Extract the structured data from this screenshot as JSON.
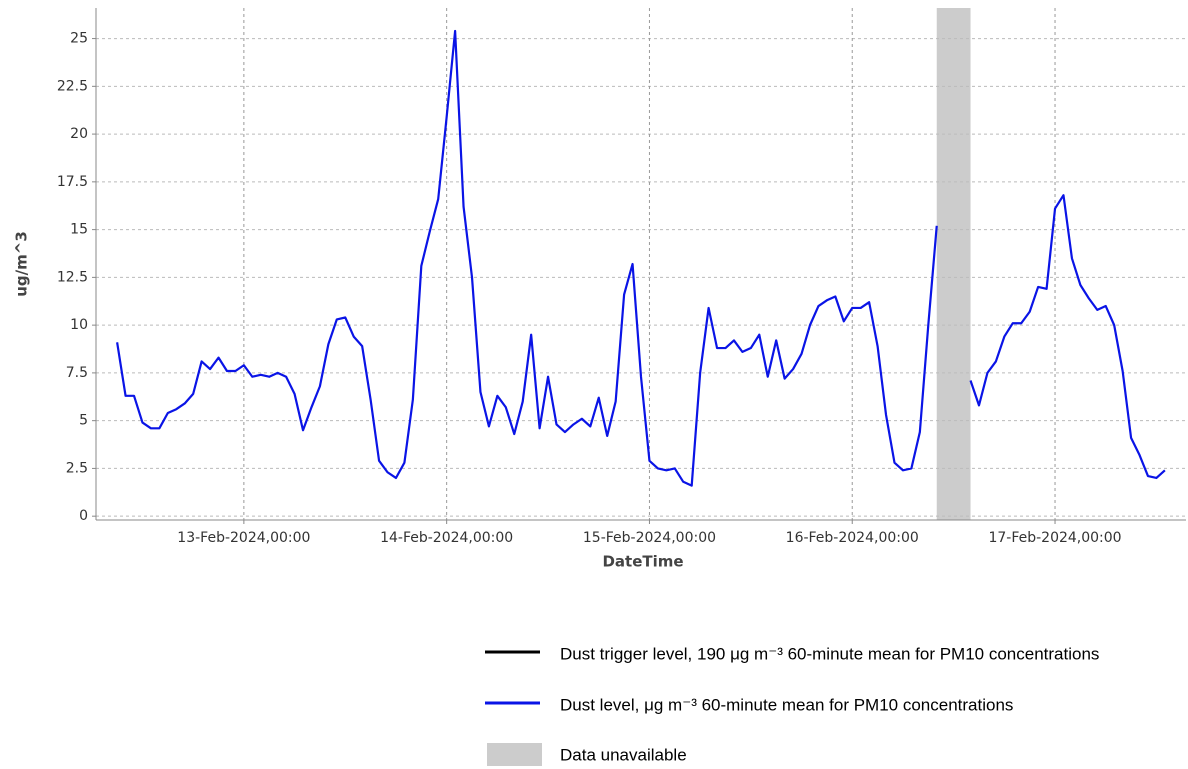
{
  "chart_data": {
    "type": "line",
    "xlabel": "DateTime",
    "ylabel": "ug/m^3",
    "x": [
      "2024-02-12T09:00",
      "2024-02-12T10:00",
      "2024-02-12T11:00",
      "2024-02-12T12:00",
      "2024-02-12T13:00",
      "2024-02-12T14:00",
      "2024-02-12T15:00",
      "2024-02-12T16:00",
      "2024-02-12T17:00",
      "2024-02-12T18:00",
      "2024-02-12T19:00",
      "2024-02-12T20:00",
      "2024-02-12T21:00",
      "2024-02-12T22:00",
      "2024-02-12T23:00",
      "2024-02-13T00:00",
      "2024-02-13T01:00",
      "2024-02-13T02:00",
      "2024-02-13T03:00",
      "2024-02-13T04:00",
      "2024-02-13T05:00",
      "2024-02-13T06:00",
      "2024-02-13T07:00",
      "2024-02-13T08:00",
      "2024-02-13T09:00",
      "2024-02-13T10:00",
      "2024-02-13T11:00",
      "2024-02-13T12:00",
      "2024-02-13T13:00",
      "2024-02-13T14:00",
      "2024-02-13T15:00",
      "2024-02-13T16:00",
      "2024-02-13T17:00",
      "2024-02-13T18:00",
      "2024-02-13T19:00",
      "2024-02-13T20:00",
      "2024-02-13T21:00",
      "2024-02-13T22:00",
      "2024-02-13T23:00",
      "2024-02-14T00:00",
      "2024-02-14T01:00",
      "2024-02-14T02:00",
      "2024-02-14T03:00",
      "2024-02-14T04:00",
      "2024-02-14T05:00",
      "2024-02-14T06:00",
      "2024-02-14T07:00",
      "2024-02-14T08:00",
      "2024-02-14T09:00",
      "2024-02-14T10:00",
      "2024-02-14T11:00",
      "2024-02-14T12:00",
      "2024-02-14T13:00",
      "2024-02-14T14:00",
      "2024-02-14T15:00",
      "2024-02-14T16:00",
      "2024-02-14T17:00",
      "2024-02-14T18:00",
      "2024-02-14T19:00",
      "2024-02-14T20:00",
      "2024-02-14T21:00",
      "2024-02-14T22:00",
      "2024-02-14T23:00",
      "2024-02-15T00:00",
      "2024-02-15T01:00",
      "2024-02-15T02:00",
      "2024-02-15T03:00",
      "2024-02-15T04:00",
      "2024-02-15T05:00",
      "2024-02-15T06:00",
      "2024-02-15T07:00",
      "2024-02-15T08:00",
      "2024-02-15T09:00",
      "2024-02-15T10:00",
      "2024-02-15T11:00",
      "2024-02-15T12:00",
      "2024-02-15T13:00",
      "2024-02-15T14:00",
      "2024-02-15T15:00",
      "2024-02-15T16:00",
      "2024-02-15T17:00",
      "2024-02-15T18:00",
      "2024-02-15T19:00",
      "2024-02-15T20:00",
      "2024-02-15T21:00",
      "2024-02-15T22:00",
      "2024-02-15T23:00",
      "2024-02-16T00:00",
      "2024-02-16T01:00",
      "2024-02-16T02:00",
      "2024-02-16T03:00",
      "2024-02-16T04:00",
      "2024-02-16T05:00",
      "2024-02-16T06:00",
      "2024-02-16T07:00",
      "2024-02-16T08:00",
      "2024-02-16T09:00",
      "2024-02-16T10:00",
      "2024-02-16T11:00",
      "2024-02-16T12:00",
      "2024-02-16T13:00",
      "2024-02-16T14:00",
      "2024-02-16T15:00",
      "2024-02-16T16:00",
      "2024-02-16T17:00",
      "2024-02-16T18:00",
      "2024-02-16T19:00",
      "2024-02-16T20:00",
      "2024-02-16T21:00",
      "2024-02-16T22:00",
      "2024-02-16T23:00",
      "2024-02-17T00:00",
      "2024-02-17T01:00",
      "2024-02-17T02:00",
      "2024-02-17T03:00",
      "2024-02-17T04:00",
      "2024-02-17T05:00",
      "2024-02-17T06:00",
      "2024-02-17T07:00",
      "2024-02-17T08:00",
      "2024-02-17T09:00",
      "2024-02-17T10:00",
      "2024-02-17T11:00",
      "2024-02-17T12:00",
      "2024-02-17T13:00"
    ],
    "series": [
      {
        "name": "Dust level, μg m⁻³ 60-minute mean for PM10 concentrations",
        "color": "#0a14e6",
        "values": [
          9.1,
          6.3,
          6.3,
          4.9,
          4.6,
          4.6,
          5.4,
          5.6,
          5.9,
          6.4,
          8.1,
          7.7,
          8.3,
          7.6,
          7.6,
          7.9,
          7.3,
          7.4,
          7.3,
          7.5,
          7.3,
          6.4,
          4.5,
          5.7,
          6.8,
          9.0,
          10.3,
          10.4,
          9.4,
          8.9,
          6.1,
          2.9,
          2.3,
          2.0,
          2.8,
          6.1,
          13.1,
          14.9,
          16.6,
          20.9,
          25.4,
          16.2,
          12.5,
          6.5,
          4.7,
          6.3,
          5.7,
          4.3,
          6.0,
          9.5,
          4.6,
          7.3,
          4.8,
          4.4,
          4.8,
          5.1,
          4.7,
          6.2,
          4.2,
          6.0,
          11.6,
          13.2,
          7.3,
          2.9,
          2.5,
          2.4,
          2.5,
          1.8,
          1.6,
          7.5,
          10.9,
          8.8,
          8.8,
          9.2,
          8.6,
          8.8,
          9.5,
          7.3,
          9.2,
          7.2,
          7.7,
          8.5,
          10.0,
          11.0,
          11.3,
          11.5,
          10.2,
          10.9,
          10.9,
          11.2,
          8.9,
          5.3,
          2.8,
          2.4,
          2.5,
          4.4,
          10.0,
          15.2,
          null,
          null,
          null,
          7.1,
          5.8,
          7.5,
          8.1,
          9.4,
          10.1,
          10.1,
          10.7,
          12.0,
          11.9,
          16.1,
          16.8,
          13.5,
          12.1,
          11.4,
          10.8,
          11.0,
          10.0,
          7.6,
          4.1,
          3.2,
          2.1,
          2.0,
          2.4
        ]
      }
    ],
    "threshold": {
      "name": "Dust trigger level, 190 μg m⁻³ 60-minute mean for PM10 concentrations",
      "value": 190,
      "color": "#000000"
    },
    "shaded_regions": [
      {
        "name": "Data unavailable",
        "start": "2024-02-16T10:00",
        "end": "2024-02-16T14:00",
        "color": "#cccccc"
      }
    ],
    "xlim": [
      "2024-02-12T06:30",
      "2024-02-17T15:30"
    ],
    "xticks": [
      {
        "value": "2024-02-13T00:00",
        "label": "13-Feb-2024,00:00"
      },
      {
        "value": "2024-02-14T00:00",
        "label": "14-Feb-2024,00:00"
      },
      {
        "value": "2024-02-15T00:00",
        "label": "15-Feb-2024,00:00"
      },
      {
        "value": "2024-02-16T00:00",
        "label": "16-Feb-2024,00:00"
      },
      {
        "value": "2024-02-17T00:00",
        "label": "17-Feb-2024,00:00"
      }
    ],
    "ylim": [
      -0.2,
      26.6
    ],
    "yticks": [
      0,
      2.5,
      5,
      7.5,
      10,
      12.5,
      15,
      17.5,
      20,
      22.5,
      25
    ],
    "grid": true
  }
}
